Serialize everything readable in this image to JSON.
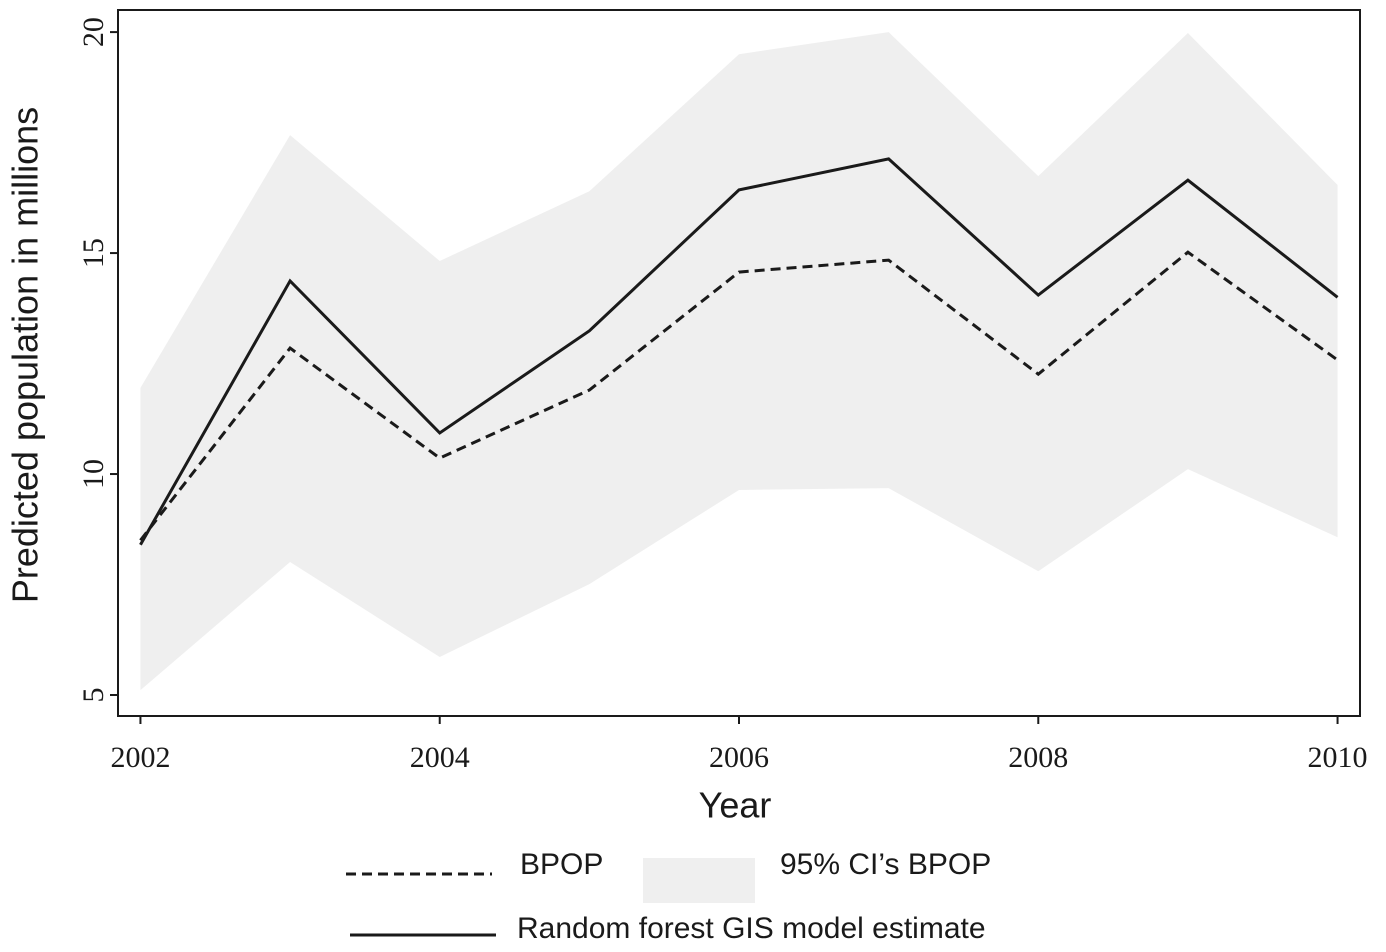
{
  "chart_data": {
    "type": "line",
    "x_label": "Year",
    "y_label": "Predicted population in millions",
    "x": [
      2002,
      2003,
      2004,
      2005,
      2006,
      2007,
      2008,
      2009,
      2010
    ],
    "xlim": [
      2001.85,
      2010.15
    ],
    "xticks": [
      2002,
      2004,
      2006,
      2008,
      2010
    ],
    "ylim": [
      4.525,
      20.5
    ],
    "yticks": [
      5,
      10,
      15,
      20
    ],
    "band": {
      "name": "95% CI’s BPOP",
      "color": "#efefef",
      "upper": [
        11.95,
        17.67,
        14.82,
        16.4,
        19.5,
        20,
        16.74,
        19.98,
        16.54
      ],
      "lower": [
        5.11,
        8.01,
        5.86,
        7.51,
        9.64,
        9.68,
        7.8,
        10.11,
        8.57
      ]
    },
    "series": [
      {
        "name": "BPOP",
        "color": "#1a1a1a",
        "dash": "dashed",
        "values": [
          8.5,
          12.85,
          10.36,
          11.9,
          14.57,
          14.84,
          12.26,
          15.02,
          12.58
        ]
      },
      {
        "name": "Random forest GIS model estimate",
        "color": "#1a1a1a",
        "dash": "solid",
        "values": [
          8.4,
          14.37,
          10.93,
          13.24,
          16.43,
          17.13,
          14.05,
          16.65,
          14.0
        ]
      }
    ]
  }
}
